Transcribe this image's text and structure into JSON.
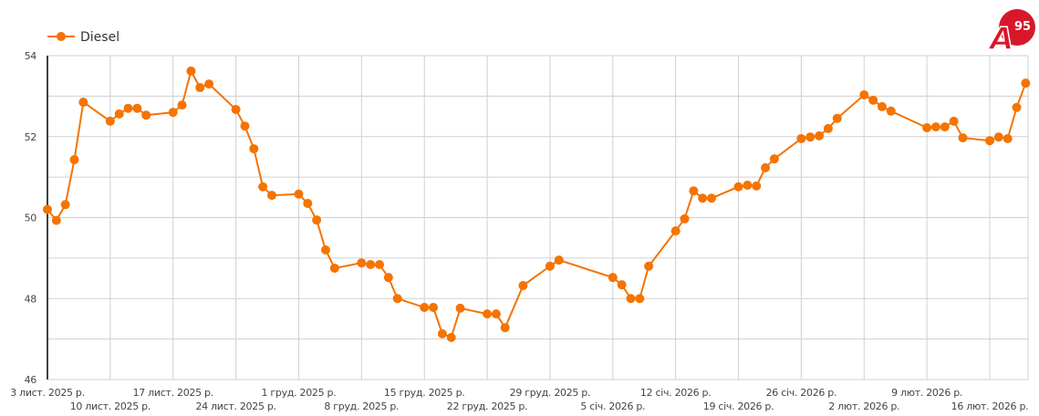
{
  "chart_data": {
    "type": "line",
    "title": "",
    "xlabel": "",
    "ylabel": "",
    "ylim": [
      46,
      54
    ],
    "y_ticks": [
      "46",
      "48",
      "50",
      "52",
      "54"
    ],
    "y_grid_step": 1,
    "grid": true,
    "legend_position": "top-left",
    "colors": {
      "series": "#f57300",
      "grid": "#d0d0d0",
      "axis": "#000000"
    },
    "x_range": [
      "2025-11-03",
      "2026-02-20"
    ],
    "x_ticks": [
      {
        "date": "2025-11-03",
        "label": "3 лист. 2025 р."
      },
      {
        "date": "2025-11-10",
        "label": "10 лист. 2025 р."
      },
      {
        "date": "2025-11-17",
        "label": "17 лист. 2025 р."
      },
      {
        "date": "2025-11-24",
        "label": "24 лист. 2025 р."
      },
      {
        "date": "2025-12-01",
        "label": "1 груд. 2025 р."
      },
      {
        "date": "2025-12-08",
        "label": "8 груд. 2025 р."
      },
      {
        "date": "2025-12-15",
        "label": "15 груд. 2025 р."
      },
      {
        "date": "2025-12-22",
        "label": "22 груд. 2025 р."
      },
      {
        "date": "2025-12-29",
        "label": "29 груд. 2025 р."
      },
      {
        "date": "2026-01-05",
        "label": "5 січ. 2026 р."
      },
      {
        "date": "2026-01-12",
        "label": "12 січ. 2026 р."
      },
      {
        "date": "2026-01-19",
        "label": "19 січ. 2026 р."
      },
      {
        "date": "2026-01-26",
        "label": "26 січ. 2026 р."
      },
      {
        "date": "2026-02-02",
        "label": "2 лют. 2026 р."
      },
      {
        "date": "2026-02-09",
        "label": "9 лют. 2026 р."
      },
      {
        "date": "2026-02-16",
        "label": "16 лют. 2026 р."
      }
    ],
    "series": [
      {
        "name": "Diesel",
        "points": [
          [
            "2025-11-03",
            50.2
          ],
          [
            "2025-11-04",
            49.93
          ],
          [
            "2025-11-05",
            50.32
          ],
          [
            "2025-11-06",
            51.43
          ],
          [
            "2025-11-07",
            52.85
          ],
          [
            "2025-11-10",
            52.38
          ],
          [
            "2025-11-11",
            52.56
          ],
          [
            "2025-11-12",
            52.7
          ],
          [
            "2025-11-13",
            52.7
          ],
          [
            "2025-11-14",
            52.53
          ],
          [
            "2025-11-17",
            52.6
          ],
          [
            "2025-11-18",
            52.78
          ],
          [
            "2025-11-19",
            53.62
          ],
          [
            "2025-11-20",
            53.21
          ],
          [
            "2025-11-21",
            53.3
          ],
          [
            "2025-11-24",
            52.67
          ],
          [
            "2025-11-25",
            52.26
          ],
          [
            "2025-11-26",
            51.7
          ],
          [
            "2025-11-27",
            50.76
          ],
          [
            "2025-11-28",
            50.55
          ],
          [
            "2025-12-01",
            50.58
          ],
          [
            "2025-12-02",
            50.35
          ],
          [
            "2025-12-03",
            49.94
          ],
          [
            "2025-12-04",
            49.2
          ],
          [
            "2025-12-05",
            48.75
          ],
          [
            "2025-12-08",
            48.88
          ],
          [
            "2025-12-09",
            48.84
          ],
          [
            "2025-12-10",
            48.84
          ],
          [
            "2025-12-11",
            48.52
          ],
          [
            "2025-12-12",
            48.0
          ],
          [
            "2025-12-15",
            47.78
          ],
          [
            "2025-12-16",
            47.78
          ],
          [
            "2025-12-17",
            47.13
          ],
          [
            "2025-12-18",
            47.04
          ],
          [
            "2025-12-19",
            47.76
          ],
          [
            "2025-12-22",
            47.62
          ],
          [
            "2025-12-23",
            47.62
          ],
          [
            "2025-12-24",
            47.28
          ],
          [
            "2025-12-26",
            48.32
          ],
          [
            "2025-12-29",
            48.8
          ],
          [
            "2025-12-30",
            48.95
          ],
          [
            "2026-01-05",
            48.52
          ],
          [
            "2026-01-06",
            48.34
          ],
          [
            "2026-01-07",
            48.0
          ],
          [
            "2026-01-08",
            48.0
          ],
          [
            "2026-01-09",
            48.8
          ],
          [
            "2026-01-12",
            49.67
          ],
          [
            "2026-01-13",
            49.97
          ],
          [
            "2026-01-14",
            50.66
          ],
          [
            "2026-01-15",
            50.48
          ],
          [
            "2026-01-16",
            50.48
          ],
          [
            "2026-01-19",
            50.76
          ],
          [
            "2026-01-20",
            50.8
          ],
          [
            "2026-01-21",
            50.78
          ],
          [
            "2026-01-22",
            51.23
          ],
          [
            "2026-01-23",
            51.45
          ],
          [
            "2026-01-26",
            51.95
          ],
          [
            "2026-01-27",
            51.99
          ],
          [
            "2026-01-28",
            52.02
          ],
          [
            "2026-01-29",
            52.2
          ],
          [
            "2026-01-30",
            52.45
          ],
          [
            "2026-02-02",
            53.03
          ],
          [
            "2026-02-03",
            52.9
          ],
          [
            "2026-02-04",
            52.74
          ],
          [
            "2026-02-05",
            52.63
          ],
          [
            "2026-02-09",
            52.22
          ],
          [
            "2026-02-10",
            52.24
          ],
          [
            "2026-02-11",
            52.24
          ],
          [
            "2026-02-12",
            52.38
          ],
          [
            "2026-02-13",
            51.97
          ],
          [
            "2026-02-16",
            51.9
          ],
          [
            "2026-02-17",
            51.99
          ],
          [
            "2026-02-18",
            51.95
          ],
          [
            "2026-02-19",
            52.72
          ],
          [
            "2026-02-20",
            53.32
          ]
        ]
      }
    ]
  },
  "logo": {
    "text": "A95",
    "color": "#d7182a"
  }
}
